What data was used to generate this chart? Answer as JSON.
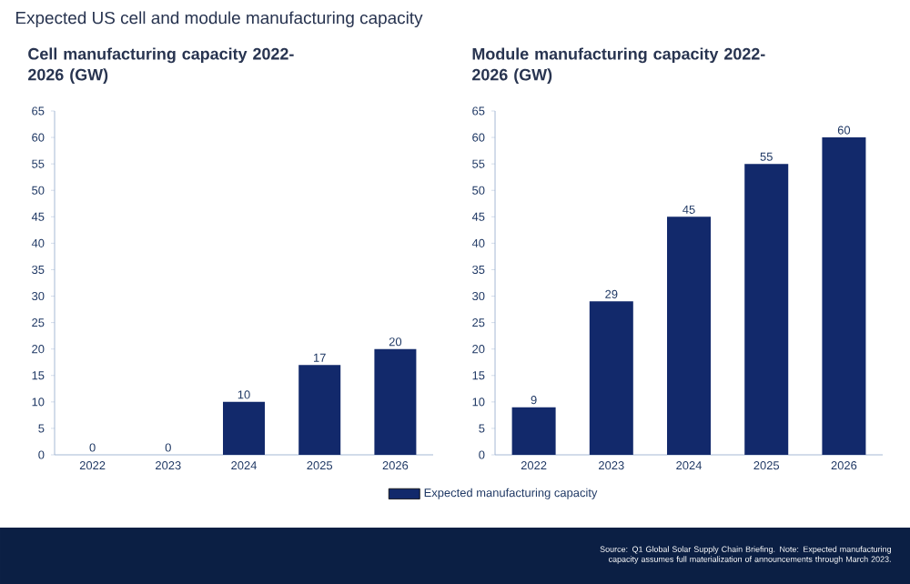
{
  "chart_data": [
    {
      "type": "bar",
      "title": "Expected US cell and module manufacturing capacity",
      "subtitle": "Cell manufacturing capacity 2022-2026 (GW)",
      "categories": [
        "2022",
        "2023",
        "2024",
        "2025",
        "2026"
      ],
      "values": [
        0,
        0,
        10,
        17,
        20
      ],
      "color": "#12296b",
      "ylim": [
        0,
        65
      ],
      "yticks": [
        0,
        5,
        10,
        15,
        20,
        25,
        30,
        35,
        40,
        45,
        50,
        55,
        60,
        65
      ],
      "data_labels": true
    },
    {
      "type": "bar",
      "title": "Module manufacturing capacity 2022-2026 (GW)",
      "categories": [
        "2022",
        "2023",
        "2024",
        "2025",
        "2026"
      ],
      "series": [
        {
          "name": "Expected manufacturing capacity",
          "color": "#12296b",
          "values": [
            9,
            29,
            45,
            55,
            60
          ]
        }
      ],
      "ylim": [
        0,
        65
      ],
      "yticks": [
        0,
        5,
        10,
        15,
        20,
        25,
        30,
        35,
        40,
        45,
        50,
        55,
        60,
        65
      ],
      "data_labels": true,
      "legend": "bottom",
      "annotations": [
        "Source: Q1 Global Solar Supply Chain Briefing. Note: Expected manufacturing capacity assumes full materialization of announcements through March 2023."
      ]
    }
  ]
}
